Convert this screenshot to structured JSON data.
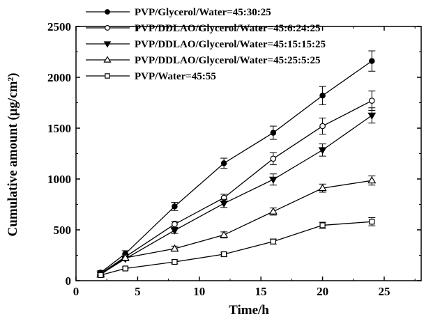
{
  "chart_data": {
    "type": "line",
    "xlabel": "Time/h",
    "ylabel": "Cumulative amount (μg/cm²)",
    "xlim": [
      0,
      28
    ],
    "ylim": [
      0,
      2500
    ],
    "xticks": [
      "0",
      "5",
      "10",
      "15",
      "20",
      "25"
    ],
    "yticks": [
      "0",
      "500",
      "1000",
      "1500",
      "2000",
      "2500"
    ],
    "grid": false,
    "legend_position": "top-left",
    "x": [
      2,
      4,
      8,
      12,
      16,
      20,
      24
    ],
    "series": [
      {
        "name": "PVP/Glycerol/Water=45:30:25",
        "marker": "filled-circle",
        "values": [
          80,
          265,
          730,
          1155,
          1455,
          1820,
          2160
        ],
        "errors": [
          20,
          30,
          40,
          50,
          65,
          90,
          100
        ]
      },
      {
        "name": "PVP/DDLAO/Glycerol/Water=45:6:24:25",
        "marker": "open-circle",
        "values": [
          70,
          235,
          555,
          815,
          1200,
          1520,
          1770
        ],
        "errors": [
          15,
          25,
          30,
          35,
          60,
          80,
          95
        ]
      },
      {
        "name": "PVP/DDLAO/Glycerol/Water=45:15:15:25",
        "marker": "filled-triangle-down",
        "values": [
          65,
          215,
          495,
          760,
          995,
          1285,
          1625
        ],
        "errors": [
          15,
          20,
          30,
          40,
          55,
          60,
          75
        ]
      },
      {
        "name": "PVP/DDLAO/Glycerol/Water=45:25:5:25",
        "marker": "open-triangle-up",
        "values": [
          60,
          225,
          315,
          450,
          680,
          910,
          985
        ],
        "errors": [
          15,
          20,
          25,
          30,
          35,
          40,
          45
        ]
      },
      {
        "name": "PVP/Water=45:55",
        "marker": "open-square",
        "values": [
          55,
          120,
          185,
          260,
          385,
          545,
          580
        ],
        "errors": [
          10,
          15,
          20,
          20,
          25,
          30,
          40
        ]
      }
    ]
  }
}
